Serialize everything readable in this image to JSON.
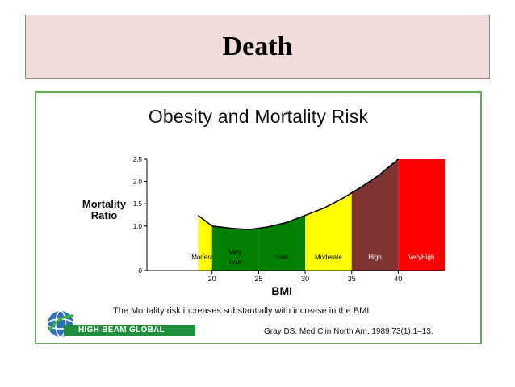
{
  "slide": {
    "title": "Death"
  },
  "figure": {
    "caption": "The Mortality risk increases substantially with increase in the BMI",
    "citation": "Gray DS. Med Clin North Am. 1989;73(1):1–13.",
    "logo_text": "HIGH BEAM GLOBAL"
  },
  "chart_data": {
    "type": "area",
    "title": "Obesity and Mortality Risk",
    "xlabel": "BMI",
    "ylabel": "Mortality Ratio",
    "xlim": [
      13,
      45
    ],
    "ylim": [
      0,
      2.5
    ],
    "x_ticks": [
      "20",
      "25",
      "30",
      "35",
      "40"
    ],
    "y_ticks": [
      "0",
      "1.0",
      "1.5",
      "2.0",
      "2.5"
    ],
    "curve": {
      "x": [
        18.5,
        20,
        22,
        24,
        26,
        28,
        30,
        32,
        34,
        36,
        38,
        40
      ],
      "y": [
        1.24,
        1.0,
        0.95,
        0.92,
        0.98,
        1.08,
        1.24,
        1.4,
        1.62,
        1.87,
        2.15,
        2.5
      ]
    },
    "bands": [
      {
        "label": "Moderate",
        "x0": 18.5,
        "x1": 20,
        "color": "#ffff00",
        "text_color": "#000000"
      },
      {
        "label": "Very Low",
        "x0": 20,
        "x1": 25,
        "color": "#007f00",
        "text_color": "#000000"
      },
      {
        "label": "Low",
        "x0": 25,
        "x1": 30,
        "color": "#007f00",
        "text_color": "#000000"
      },
      {
        "label": "Moderate",
        "x0": 30,
        "x1": 35,
        "color": "#ffff00",
        "text_color": "#000000"
      },
      {
        "label": "High",
        "x0": 35,
        "x1": 40,
        "color": "#7f3333",
        "text_color": "#ffffff"
      },
      {
        "label": "VeryHigh",
        "x0": 40,
        "x1": 45,
        "color": "#ff0000",
        "text_color": "#ffffff",
        "flat_top": 2.5
      }
    ],
    "grid": false,
    "legend": "none"
  }
}
